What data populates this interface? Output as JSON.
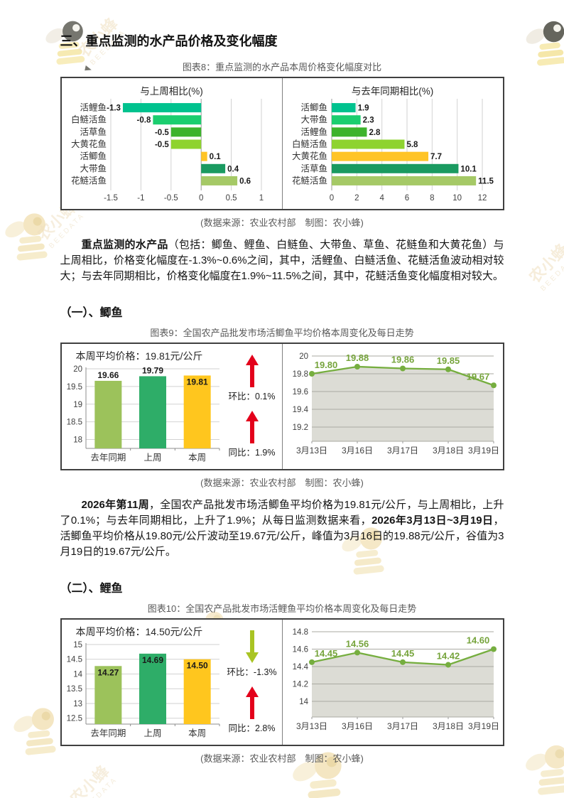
{
  "page_heading": "三、重点监测的水产品价格及变化幅度",
  "source_note": "(数据来源：农业农村部　制图：农小蜂)",
  "sections": {
    "s1_heading": "（一）、鲫鱼",
    "s2_heading": "（二）、鲤鱼"
  },
  "figures": {
    "fig8_caption": "图表8：重点监测的水产品本周价格变化幅度对比",
    "fig9_caption": "图表9：全国农产品批发市场活鲫鱼平均价格本周变化及每日走势",
    "fig10_caption": "图表10：全国农产品批发市场活鲤鱼平均价格本周变化及每日走势"
  },
  "para1": {
    "segments": [
      {
        "t": "重点监测的水产品",
        "b": true
      },
      {
        "t": "（包括：鲫鱼、鲤鱼、白鲢鱼、大带鱼、草鱼、花鲢鱼和大黄花鱼）与上周相比，价格变化幅度在-1.3%~0.6%之间，其中，活鲤鱼、白鲢活鱼、花鲢活鱼波动相对较大；与去年同期相比，价格变化幅度在1.9%~11.5%之间，其中，花鲢活鱼变化幅度相对较大。",
        "b": false
      }
    ]
  },
  "para2": {
    "segments": [
      {
        "t": "2026年第11周",
        "b": true
      },
      {
        "t": "，全国农产品批发市场活鲫鱼平均价格为19.81元/公斤，与上周相比，上升了0.1%；与去年同期相比，上升了1.9%；从每日监测数据来看，",
        "b": false
      },
      {
        "t": "2026年3月13日~3月19日",
        "b": true
      },
      {
        "t": "，活鲫鱼平均价格从19.80元/公斤波动至19.67元/公斤，峰值为3月16日的19.88元/公斤，谷值为3月19日的19.67元/公斤。",
        "b": false
      }
    ]
  },
  "indicators": {
    "crucian": [
      {
        "dir": "up",
        "color": "#E3001B",
        "text": "环比：0.1%"
      },
      {
        "dir": "up",
        "color": "#E3001B",
        "text": "同比：1.9%"
      }
    ],
    "carp": [
      {
        "dir": "down",
        "color": "#A9C423",
        "text": "环比：-1.3%"
      },
      {
        "dir": "up",
        "color": "#E3001B",
        "text": "同比：2.8%"
      }
    ]
  },
  "watermark": {
    "brand": "农小蜂",
    "sub": "BEEDATA"
  },
  "chart_data": [
    {
      "id": "wow_change",
      "type": "bar",
      "orientation": "horizontal",
      "title": "与上周相比(%)",
      "categories": [
        "活鲤鱼",
        "白鲢活鱼",
        "活草鱼",
        "大黄花鱼",
        "活鲫鱼",
        "大带鱼",
        "花鲢活鱼"
      ],
      "values": [
        -1.3,
        -0.8,
        -0.5,
        -0.5,
        0.1,
        0.4,
        0.6
      ],
      "value_labels": [
        "-1.3",
        "-0.8",
        "-0.5",
        "-0.5",
        "0.1",
        "0.4",
        "0.6"
      ],
      "colors": [
        "#00C28E",
        "#1BCE6F",
        "#3DB32C",
        "#8ED32F",
        "#FFC426",
        "#1A9A60",
        "#A5C966"
      ],
      "xlim": [
        -1.5,
        1
      ],
      "xticks": [
        -1.5,
        -1,
        -0.5,
        0,
        0.5,
        1
      ],
      "xtick_labels": [
        "-1.5",
        "-1",
        "-0.5",
        "0",
        "0.5",
        "1"
      ],
      "grid": true,
      "legend": false
    },
    {
      "id": "yoy_change",
      "type": "bar",
      "orientation": "horizontal",
      "title": "与去年同期相比(%)",
      "categories": [
        "活鲫鱼",
        "大带鱼",
        "活鲤鱼",
        "白鲢活鱼",
        "大黄花鱼",
        "活草鱼",
        "花鲢活鱼"
      ],
      "values": [
        1.9,
        2.3,
        2.8,
        5.8,
        7.7,
        10.1,
        11.5
      ],
      "value_labels": [
        "1.9",
        "2.3",
        "2.8",
        "5.8",
        "7.7",
        "10.1",
        "11.5"
      ],
      "colors": [
        "#00C28E",
        "#1BCE6F",
        "#3DB32C",
        "#8ED32F",
        "#FFC426",
        "#1A9A60",
        "#A5C966"
      ],
      "xlim": [
        0,
        12
      ],
      "xticks": [
        0,
        2,
        4,
        6,
        8,
        10,
        12
      ],
      "xtick_labels": [
        "0",
        "2",
        "4",
        "6",
        "8",
        "10",
        "12"
      ],
      "grid": true,
      "legend": false
    },
    {
      "id": "crucian_weekly",
      "type": "bar",
      "orientation": "vertical",
      "title": "本周平均价格：19.81元/公斤",
      "categories": [
        "去年同期",
        "上周",
        "本周"
      ],
      "values": [
        19.66,
        19.79,
        19.81
      ],
      "value_labels": [
        "19.66",
        "19.79",
        "19.81"
      ],
      "colors": [
        "#9CC25B",
        "#2EAD68",
        "#FFC61E"
      ],
      "ylim": [
        17.75,
        20
      ],
      "yticks": [
        20,
        19.5,
        19,
        18.5,
        18
      ],
      "ytick_labels": [
        "20",
        "19.5",
        "19",
        "18.5",
        "18"
      ],
      "label_inside": [
        false,
        false,
        true
      ],
      "grid": true,
      "legend": false
    },
    {
      "id": "crucian_daily",
      "type": "line",
      "x": [
        "3月13日",
        "3月16日",
        "3月17日",
        "3月18日",
        "3月19日"
      ],
      "values": [
        19.8,
        19.88,
        19.86,
        19.85,
        19.67
      ],
      "value_labels": [
        "19.80",
        "19.88",
        "19.86",
        "19.85",
        "19.67"
      ],
      "line_color": "#76AE3F",
      "label_color": "#76A43C",
      "area_fill": "#DCDCD5",
      "ylim": [
        19.04,
        20
      ],
      "yticks": [
        20,
        19.8,
        19.6,
        19.4,
        19.2
      ],
      "ytick_labels": [
        "20",
        "19.8",
        "19.6",
        "19.4",
        "19.2"
      ],
      "grid": true,
      "legend": false
    },
    {
      "id": "carp_weekly",
      "type": "bar",
      "orientation": "vertical",
      "title": "本周平均价格：14.50元/公斤",
      "categories": [
        "去年同期",
        "上周",
        "本周"
      ],
      "values": [
        14.27,
        14.69,
        14.5
      ],
      "value_labels": [
        "14.27",
        "14.69",
        "14.50"
      ],
      "colors": [
        "#9CC25B",
        "#2EAD68",
        "#FFC61E"
      ],
      "ylim": [
        12.3,
        15
      ],
      "yticks": [
        15,
        14.5,
        14,
        13.5,
        13,
        12.5
      ],
      "ytick_labels": [
        "15",
        "14.5",
        "14",
        "13.5",
        "13",
        "12.5"
      ],
      "label_inside": [
        true,
        true,
        true
      ],
      "grid": true,
      "legend": false
    },
    {
      "id": "carp_daily",
      "type": "line",
      "x": [
        "3月13日",
        "3月16日",
        "3月17日",
        "3月18日",
        "3月19日"
      ],
      "values": [
        14.45,
        14.56,
        14.45,
        14.42,
        14.6
      ],
      "value_labels": [
        "14.45",
        "14.56",
        "14.45",
        "14.42",
        "14.60"
      ],
      "line_color": "#76AE3F",
      "label_color": "#76A43C",
      "area_fill": "#DCDCD5",
      "ylim": [
        13.82,
        14.8
      ],
      "yticks": [
        14.8,
        14.6,
        14.4,
        14.2,
        14
      ],
      "ytick_labels": [
        "14.8",
        "14.6",
        "14.4",
        "14.2",
        "14"
      ],
      "grid": true,
      "legend": false
    }
  ]
}
